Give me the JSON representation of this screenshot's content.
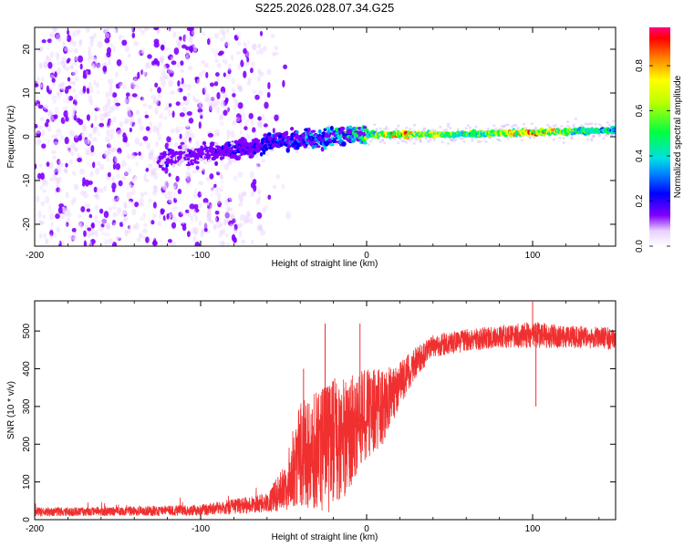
{
  "title": "S225.2026.028.07.34.G25",
  "colorbar": {
    "label": "Normalized spectral amplitude",
    "ticks": [
      0.0,
      0.2,
      0.4,
      0.6,
      0.8
    ],
    "tick_labels": [
      "0.0",
      "0.2",
      "0.4",
      "0.6",
      "0.8"
    ],
    "range": [
      0,
      0.97
    ]
  },
  "chart_data": [
    {
      "type": "heatmap",
      "xlabel": "Height of straight line (km)",
      "ylabel": "Frequency (Hz)",
      "xlim": [
        -200,
        150
      ],
      "ylim": [
        -25,
        25
      ],
      "x_ticks": [
        -200,
        -100,
        0,
        100
      ],
      "x_tick_labels": [
        "-200",
        "-100",
        "0",
        "100"
      ],
      "y_ticks": [
        -20,
        -10,
        0,
        10,
        20
      ],
      "y_tick_labels": [
        "-20",
        "-10",
        "0",
        "10",
        "20"
      ],
      "description_points": {
        "ridge_center_hz": [
          {
            "x": -120,
            "y": -5
          },
          {
            "x": -80,
            "y": -3
          },
          {
            "x": -50,
            "y": -1
          },
          {
            "x": -20,
            "y": 0
          },
          {
            "x": 0,
            "y": 0.5
          },
          {
            "x": 50,
            "y": 0.5
          },
          {
            "x": 100,
            "y": 1
          },
          {
            "x": 150,
            "y": 1.5
          }
        ],
        "ridge_amplitude": [
          {
            "x": -120,
            "y": 0.15
          },
          {
            "x": -60,
            "y": 0.3
          },
          {
            "x": -30,
            "y": 0.4
          },
          {
            "x": 0,
            "y": 0.6
          },
          {
            "x": 20,
            "y": 0.9
          },
          {
            "x": 60,
            "y": 0.6
          },
          {
            "x": 100,
            "y": 0.9
          },
          {
            "x": 150,
            "y": 0.5
          }
        ],
        "noise_extent_x": [
          -200,
          -55
        ]
      }
    },
    {
      "type": "line",
      "xlabel": "Height of straight line (km)",
      "ylabel": "SNR (10 * v/v)",
      "xlim": [
        -200,
        150
      ],
      "ylim": [
        0,
        580
      ],
      "x_ticks": [
        -200,
        -100,
        0,
        100
      ],
      "x_tick_labels": [
        "-200",
        "-100",
        "0",
        "100"
      ],
      "y_ticks": [
        0,
        100,
        200,
        300,
        400,
        500
      ],
      "y_tick_labels": [
        "0",
        "100",
        "200",
        "300",
        "400",
        "500"
      ],
      "color": "#f03030",
      "envelope": {
        "x": [
          -200,
          -150,
          -100,
          -80,
          -60,
          -50,
          -40,
          -30,
          -20,
          -10,
          0,
          10,
          20,
          30,
          40,
          60,
          80,
          100,
          120,
          150
        ],
        "mean": [
          20,
          22,
          25,
          35,
          45,
          80,
          180,
          170,
          200,
          230,
          280,
          300,
          360,
          420,
          460,
          475,
          485,
          490,
          485,
          480
        ],
        "amp": [
          12,
          12,
          15,
          20,
          25,
          60,
          140,
          170,
          180,
          150,
          120,
          100,
          60,
          40,
          30,
          30,
          30,
          35,
          30,
          30
        ]
      },
      "spikes": [
        {
          "x": -25,
          "y": 520
        },
        {
          "x": -4,
          "y": 520
        },
        {
          "x": -38,
          "y": 400
        },
        {
          "x": 100,
          "y": 580
        },
        {
          "x": 102,
          "y": 300
        }
      ]
    }
  ]
}
